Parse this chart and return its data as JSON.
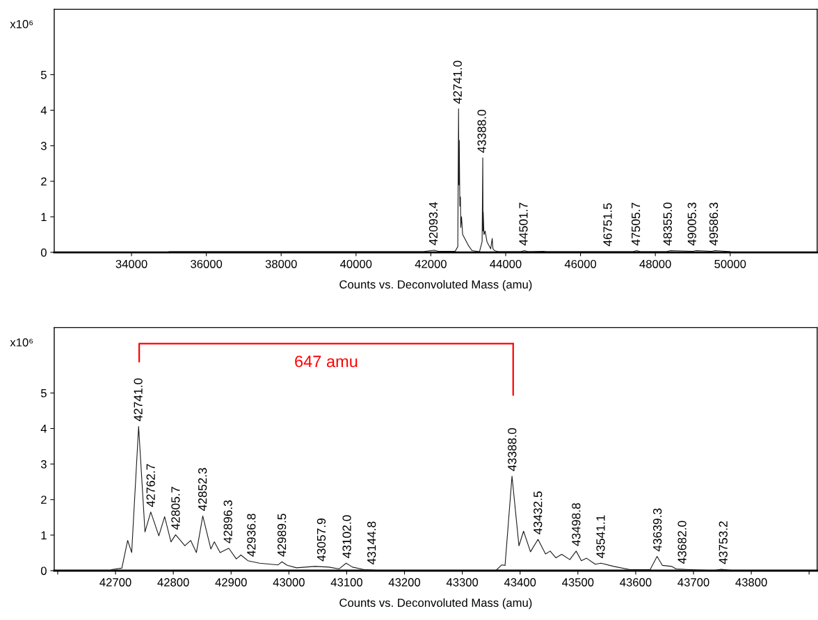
{
  "chart_data": [
    {
      "type": "line",
      "xlabel": "Counts vs. Deconvoluted Mass (amu)",
      "x": [
        35000,
        41800,
        42000,
        42093,
        42200,
        42650,
        42720,
        42741,
        42750,
        42760,
        42775,
        42790,
        42800,
        42820,
        42850,
        42900,
        43000,
        43100,
        43300,
        43370,
        43388,
        43395,
        43400,
        43420,
        43450,
        43500,
        43600,
        43640,
        43660,
        43700,
        43800,
        44400,
        44500,
        44600,
        45000,
        45100,
        47400,
        47500,
        47600,
        48300,
        48400,
        49000,
        49100,
        49500,
        49600,
        50000
      ],
      "series": [
        {
          "color": "#1a1a1a",
          "values": [
            0.02,
            0.02,
            0.05,
            0.06,
            0.03,
            0.03,
            0.16,
            4.04,
            1.9,
            3.15,
            1.3,
            1.56,
            0.7,
            1.0,
            0.5,
            0.4,
            0.2,
            0.05,
            0.02,
            0.3,
            2.66,
            0.6,
            1.13,
            0.5,
            0.6,
            0.3,
            0.1,
            0.39,
            0.1,
            0.05,
            0.02,
            0.02,
            0.05,
            0.02,
            0.03,
            0.02,
            0.02,
            0.05,
            0.02,
            0.02,
            0.05,
            0.03,
            0.05,
            0.03,
            0.05,
            0.02
          ]
        }
      ],
      "xlim": [
        31935,
        52325
      ],
      "ylim": [
        0,
        6.84
      ],
      "xticks": [
        34000,
        36000,
        38000,
        40000,
        42000,
        44000,
        46000,
        48000,
        50000
      ],
      "yticks": [
        0,
        1,
        2,
        3,
        4,
        5
      ],
      "annotations": [
        "x10⁶",
        {
          "text": "42093.4",
          "x": 42093.4,
          "y": 0.06
        },
        {
          "text": "42741.0",
          "x": 42741.0,
          "y": 4.04
        },
        {
          "text": "43388.0",
          "x": 43388.0,
          "y": 2.66
        },
        {
          "text": "44501.7",
          "x": 44501.7,
          "y": 0.05
        },
        {
          "text": "46751.5",
          "x": 46751.5,
          "y": 0.03
        },
        {
          "text": "47505.7",
          "x": 47505.7,
          "y": 0.05
        },
        {
          "text": "48355.0",
          "x": 48355.0,
          "y": 0.05
        },
        {
          "text": "49005.3",
          "x": 49005.3,
          "y": 0.05
        },
        {
          "text": "49586.3",
          "x": 49586.3,
          "y": 0.05
        }
      ]
    },
    {
      "type": "line",
      "xlabel": "Counts vs. Deconvoluted Mass (amu)",
      "x": [
        42693,
        42711,
        42721,
        42728,
        42740,
        42751,
        42761,
        42775,
        42785,
        42796,
        42804,
        42820,
        42830,
        42840,
        42851,
        42865,
        42871,
        42881,
        42896,
        42909,
        42917,
        42929,
        42949,
        42981,
        42988,
        42997,
        43013,
        43045,
        43069,
        43087,
        43099,
        43110,
        43130,
        43153,
        43358,
        43368,
        43374,
        43386,
        43398,
        43406,
        43418,
        43431,
        43444,
        43452,
        43462,
        43472,
        43486,
        43497,
        43506,
        43515,
        43530,
        43540,
        43562,
        43590,
        43625,
        43637,
        43646,
        43662,
        43670,
        43706,
        43734,
        43748,
        43771,
        43800
      ],
      "series": [
        {
          "color": "#1a1a1a",
          "values": [
            0.03,
            0.07,
            0.85,
            0.51,
            4.06,
            1.09,
            1.65,
            0.98,
            1.52,
            0.81,
            1.01,
            0.7,
            0.85,
            0.51,
            1.54,
            0.61,
            0.81,
            0.51,
            0.63,
            0.33,
            0.44,
            0.28,
            0.21,
            0.16,
            0.25,
            0.15,
            0.08,
            0.12,
            0.1,
            0.05,
            0.21,
            0.1,
            0.03,
            0.01,
            0.0,
            0.16,
            0.15,
            2.66,
            0.7,
            1.11,
            0.53,
            0.88,
            0.47,
            0.55,
            0.36,
            0.46,
            0.31,
            0.55,
            0.28,
            0.35,
            0.18,
            0.21,
            0.12,
            0.03,
            0.03,
            0.4,
            0.15,
            0.12,
            0.05,
            0.02,
            0.0,
            0.04,
            0.0,
            0.0
          ]
        }
      ],
      "xlim": [
        42594,
        43914
      ],
      "ylim": [
        0,
        6.84
      ],
      "xticks": [
        {
          "value": 42600,
          "label": null
        },
        42700,
        42800,
        42900,
        43000,
        43100,
        43200,
        43300,
        43400,
        43500,
        43600,
        43700,
        43800,
        {
          "value": 43900,
          "label": null
        }
      ],
      "yticks": [
        0,
        1,
        2,
        3,
        4,
        5
      ],
      "annotations": [
        "x10⁶",
        "647 amu",
        {
          "text": "42741.0",
          "x": 42741.0,
          "y": 4.06
        },
        {
          "text": "42762.7",
          "x": 42762.7,
          "y": 1.65
        },
        {
          "text": "42805.7",
          "x": 42805.7,
          "y": 1.01
        },
        {
          "text": "42852.3",
          "x": 42852.3,
          "y": 1.54
        },
        {
          "text": "42896.3",
          "x": 42896.3,
          "y": 0.63
        },
        {
          "text": "42936.8",
          "x": 42936.8,
          "y": 0.25
        },
        {
          "text": "42989.5",
          "x": 42989.5,
          "y": 0.25
        },
        {
          "text": "43057.9",
          "x": 43057.9,
          "y": 0.12
        },
        {
          "text": "43102.0",
          "x": 43102.0,
          "y": 0.21
        },
        {
          "text": "43144.8",
          "x": 43144.8,
          "y": 0.03
        },
        {
          "text": "43388.0",
          "x": 43388.0,
          "y": 2.66
        },
        {
          "text": "43432.5",
          "x": 43432.5,
          "y": 0.88
        },
        {
          "text": "43498.8",
          "x": 43498.8,
          "y": 0.55
        },
        {
          "text": "43541.1",
          "x": 43541.1,
          "y": 0.21
        },
        {
          "text": "43639.3",
          "x": 43639.3,
          "y": 0.4
        },
        {
          "text": "43682.0",
          "x": 43682.0,
          "y": 0.05
        },
        {
          "text": "43753.2",
          "x": 43753.2,
          "y": 0.04
        }
      ]
    }
  ]
}
